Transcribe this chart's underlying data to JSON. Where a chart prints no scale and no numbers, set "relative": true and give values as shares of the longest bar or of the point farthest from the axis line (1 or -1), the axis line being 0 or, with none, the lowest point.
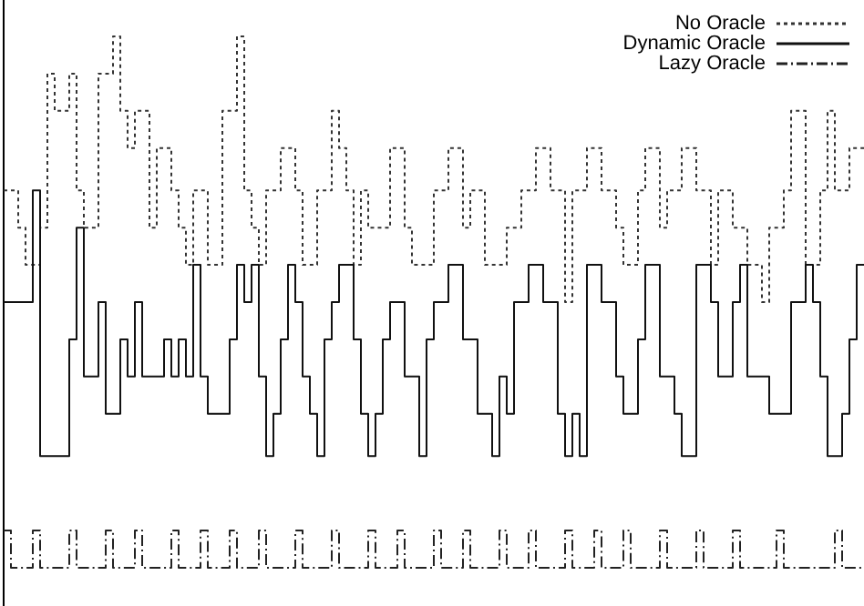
{
  "chart_data": {
    "type": "step",
    "relative": true,
    "legend": "top right",
    "categories": [
      null,
      null,
      null,
      null,
      null,
      null,
      null,
      null,
      null,
      null,
      null,
      null,
      null,
      null,
      null,
      null,
      null,
      null,
      null,
      null,
      null,
      null,
      null,
      null,
      null,
      null,
      null,
      null,
      null,
      null,
      null,
      null,
      null,
      null,
      null,
      null,
      null,
      null,
      null,
      null,
      null,
      null,
      null,
      null,
      null,
      null,
      null,
      null,
      null,
      null,
      null,
      null,
      null,
      null,
      null,
      null,
      null,
      null,
      null,
      null,
      null,
      null,
      null,
      null,
      null,
      null,
      null,
      null,
      null,
      null,
      null,
      null,
      null,
      null,
      null,
      null,
      null,
      null,
      null,
      null,
      null,
      null,
      null,
      null,
      null,
      null,
      null,
      null,
      null,
      null,
      null,
      null,
      null,
      null,
      null,
      null,
      null,
      null,
      null,
      null,
      null,
      null,
      null,
      null,
      null,
      null,
      null,
      null,
      null,
      null,
      null,
      null,
      null,
      null,
      null,
      null,
      null,
      null
    ],
    "series": [
      {
        "name": "No Oracle",
        "color": "#333333",
        "line_style": "dotted",
        "values": [
          0.71,
          0.71,
          0.64,
          0.57,
          0.57,
          0.64,
          0.93,
          0.86,
          0.86,
          0.93,
          0.71,
          0.64,
          0.64,
          0.93,
          0.93,
          1,
          0.86,
          0.79,
          0.86,
          0.86,
          0.64,
          0.79,
          0.79,
          0.71,
          0.64,
          0.57,
          0.71,
          0.71,
          0.57,
          0.57,
          0.86,
          0.86,
          1,
          0.71,
          0.64,
          0.57,
          0.71,
          0.71,
          0.79,
          0.79,
          0.71,
          0.57,
          0.57,
          0.71,
          0.71,
          0.86,
          0.79,
          0.71,
          0.57,
          0.71,
          0.64,
          0.64,
          0.64,
          0.79,
          0.79,
          0.64,
          0.57,
          0.57,
          0.57,
          0.71,
          0.71,
          0.79,
          0.79,
          0.64,
          0.71,
          0.71,
          0.57,
          0.57,
          0.57,
          0.64,
          0.64,
          0.71,
          0.71,
          0.79,
          0.79,
          0.71,
          0.71,
          0.5,
          0.71,
          0.71,
          0.79,
          0.79,
          0.71,
          0.71,
          0.64,
          0.57,
          0.57,
          0.71,
          0.79,
          0.79,
          0.64,
          0.71,
          0.71,
          0.79,
          0.79,
          0.71,
          0.71,
          0.57,
          0.71,
          0.71,
          0.64,
          0.64,
          0.57,
          0.57,
          0.5,
          0.64,
          0.64,
          0.71,
          0.86,
          0.86,
          0.57,
          0.57,
          0.71,
          0.86,
          0.71,
          0.71,
          0.79,
          0.79
        ]
      },
      {
        "name": "Dynamic Oracle",
        "color": "#111111",
        "line_style": "solid",
        "values": [
          0.5,
          0.5,
          0.5,
          0.5,
          0.71,
          0.21,
          0.21,
          0.21,
          0.21,
          0.43,
          0.64,
          0.36,
          0.36,
          0.5,
          0.29,
          0.29,
          0.43,
          0.36,
          0.5,
          0.36,
          0.36,
          0.36,
          0.43,
          0.36,
          0.43,
          0.36,
          0.57,
          0.36,
          0.29,
          0.29,
          0.29,
          0.43,
          0.57,
          0.5,
          0.57,
          0.36,
          0.21,
          0.29,
          0.43,
          0.57,
          0.5,
          0.36,
          0.29,
          0.21,
          0.43,
          0.5,
          0.57,
          0.57,
          0.43,
          0.29,
          0.21,
          0.29,
          0.43,
          0.5,
          0.5,
          0.36,
          0.36,
          0.21,
          0.43,
          0.5,
          0.5,
          0.57,
          0.57,
          0.43,
          0.43,
          0.29,
          0.29,
          0.21,
          0.36,
          0.29,
          0.5,
          0.5,
          0.57,
          0.57,
          0.5,
          0.5,
          0.29,
          0.21,
          0.29,
          0.21,
          0.57,
          0.57,
          0.5,
          0.5,
          0.36,
          0.29,
          0.29,
          0.43,
          0.57,
          0.57,
          0.36,
          0.36,
          0.29,
          0.21,
          0.21,
          0.57,
          0.57,
          0.5,
          0.36,
          0.36,
          0.5,
          0.57,
          0.36,
          0.36,
          0.36,
          0.29,
          0.29,
          0.29,
          0.5,
          0.5,
          0.57,
          0.5,
          0.36,
          0.21,
          0.21,
          0.29,
          0.43,
          0.57
        ]
      },
      {
        "name": "Lazy Oracle",
        "color": "#222222",
        "line_style": "dashdot",
        "values": [
          0.07,
          0,
          0,
          0,
          0.07,
          0,
          0,
          0,
          0,
          0.07,
          0,
          0,
          0,
          0,
          0.07,
          0,
          0,
          0,
          0.07,
          0,
          0,
          0,
          0,
          0.07,
          0,
          0,
          0,
          0.07,
          0,
          0,
          0,
          0.07,
          0,
          0,
          0,
          0.07,
          0,
          0,
          0,
          0,
          0.07,
          0,
          0,
          0,
          0,
          0.07,
          0,
          0,
          0,
          0,
          0.07,
          0,
          0,
          0,
          0.07,
          0,
          0,
          0,
          0,
          0.07,
          0,
          0,
          0,
          0.07,
          0,
          0,
          0,
          0,
          0.07,
          0,
          0,
          0,
          0.07,
          0,
          0,
          0,
          0,
          0.07,
          0,
          0,
          0,
          0.07,
          0,
          0,
          0,
          0.07,
          0,
          0,
          0,
          0,
          0.07,
          0,
          0,
          0,
          0,
          0.07,
          0,
          0,
          0,
          0,
          0.07,
          0,
          0,
          0,
          0,
          0,
          0.07,
          0,
          0,
          0,
          0,
          0,
          0,
          0,
          0.07,
          0,
          0,
          0
        ]
      }
    ]
  }
}
